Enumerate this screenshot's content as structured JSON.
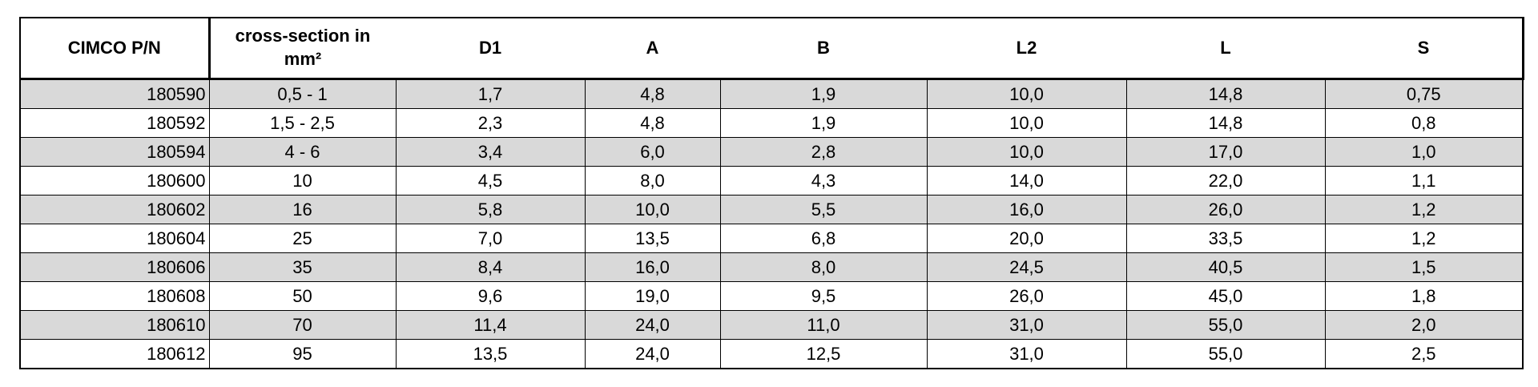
{
  "table": {
    "columns": [
      "CIMCO P/N",
      "cross-section in mm²",
      "D1",
      "A",
      "B",
      "L2",
      "L",
      "S"
    ],
    "rows": [
      [
        "180590",
        "0,5 - 1",
        "1,7",
        "4,8",
        "1,9",
        "10,0",
        "14,8",
        "0,75"
      ],
      [
        "180592",
        "1,5 - 2,5",
        "2,3",
        "4,8",
        "1,9",
        "10,0",
        "14,8",
        "0,8"
      ],
      [
        "180594",
        "4 - 6",
        "3,4",
        "6,0",
        "2,8",
        "10,0",
        "17,0",
        "1,0"
      ],
      [
        "180600",
        "10",
        "4,5",
        "8,0",
        "4,3",
        "14,0",
        "22,0",
        "1,1"
      ],
      [
        "180602",
        "16",
        "5,8",
        "10,0",
        "5,5",
        "16,0",
        "26,0",
        "1,2"
      ],
      [
        "180604",
        "25",
        "7,0",
        "13,5",
        "6,8",
        "20,0",
        "33,5",
        "1,2"
      ],
      [
        "180606",
        "35",
        "8,4",
        "16,0",
        "8,0",
        "24,5",
        "40,5",
        "1,5"
      ],
      [
        "180608",
        "50",
        "9,6",
        "19,0",
        "9,5",
        "26,0",
        "45,0",
        "1,8"
      ],
      [
        "180610",
        "70",
        "11,4",
        "24,0",
        "11,0",
        "31,0",
        "55,0",
        "2,0"
      ],
      [
        "180612",
        "95",
        "13,5",
        "24,0",
        "12,5",
        "31,0",
        "55,0",
        "2,5"
      ]
    ]
  }
}
